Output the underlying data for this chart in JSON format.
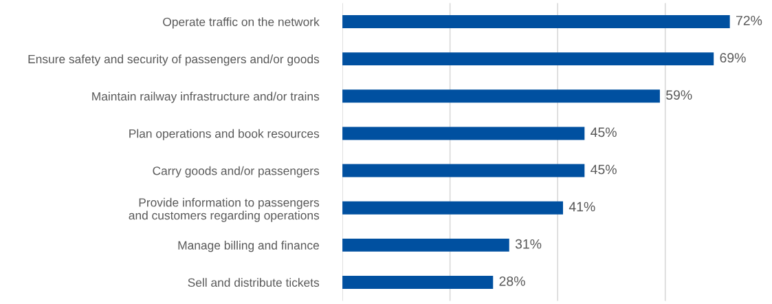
{
  "chart_data": {
    "type": "bar",
    "orientation": "horizontal",
    "categories": [
      "Operate traffic on the network",
      "Ensure safety and security of passengers and/or goods",
      "Maintain railway infrastructure and/or trains",
      "Plan operations and book resources",
      "Carry goods and/or passengers",
      "Provide information to passengers\nand customers regarding operations",
      "Manage billing and finance",
      "Sell and distribute tickets"
    ],
    "values": [
      72,
      69,
      59,
      45,
      45,
      41,
      31,
      28
    ],
    "value_labels": [
      "72%",
      "69%",
      "59%",
      "45%",
      "45%",
      "41%",
      "31%",
      "28%"
    ],
    "color": "#0050a0",
    "xticks": [
      {
        "value": 0,
        "label": null
      },
      {
        "value": 20,
        "label": null
      },
      {
        "value": 40,
        "label": null
      },
      {
        "value": 60,
        "label": null
      }
    ],
    "tick_labels": "y",
    "grid": "x",
    "legend": false
  }
}
